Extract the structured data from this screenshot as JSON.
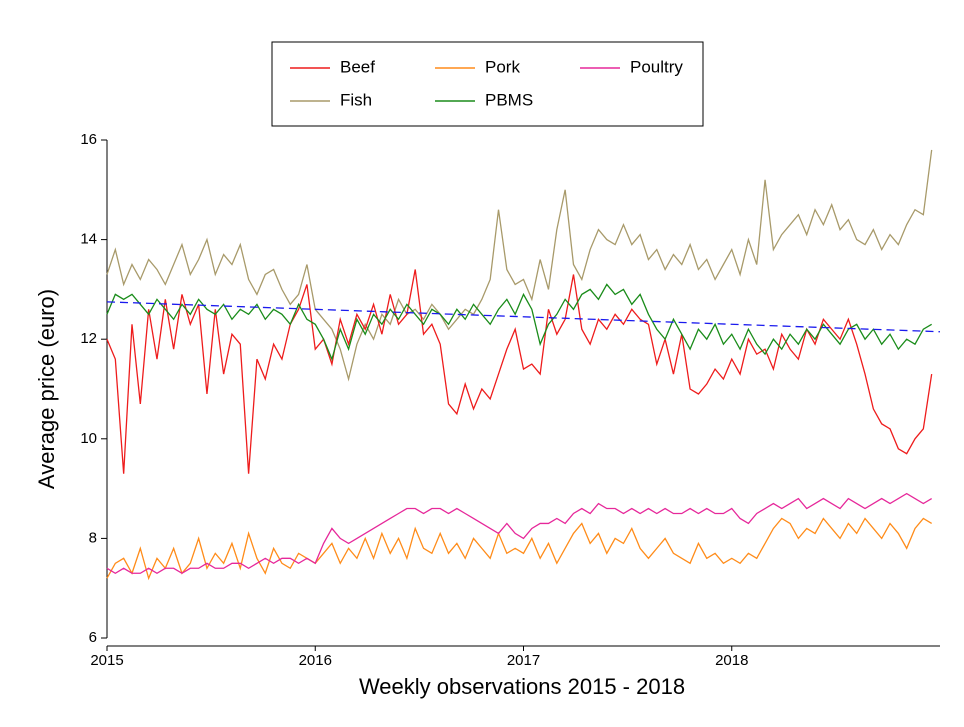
{
  "chart_data": {
    "type": "line",
    "xlabel": "Weekly observations 2015 - 2018",
    "ylabel": "Average price (euro)",
    "xlim": [
      2015,
      2019
    ],
    "xticks": [
      2015,
      2016,
      2017,
      2018
    ],
    "ylim": [
      6,
      16
    ],
    "yticks": [
      6,
      8,
      10,
      12,
      14,
      16
    ],
    "legend": "top",
    "x": [
      2015,
      2015.04,
      2015.08,
      2015.12,
      2015.16,
      2015.2,
      2015.24,
      2015.28,
      2015.32,
      2015.36,
      2015.4,
      2015.44,
      2015.48,
      2015.52,
      2015.56,
      2015.6,
      2015.64,
      2015.68,
      2015.72,
      2015.76,
      2015.8,
      2015.84,
      2015.88,
      2015.92,
      2015.96,
      2016,
      2016.04,
      2016.08,
      2016.12,
      2016.16,
      2016.2,
      2016.24,
      2016.28,
      2016.32,
      2016.36,
      2016.4,
      2016.44,
      2016.48,
      2016.52,
      2016.56,
      2016.6,
      2016.64,
      2016.68,
      2016.72,
      2016.76,
      2016.8,
      2016.84,
      2016.88,
      2016.92,
      2016.96,
      2017,
      2017.04,
      2017.08,
      2017.12,
      2017.16,
      2017.2,
      2017.24,
      2017.28,
      2017.32,
      2017.36,
      2017.4,
      2017.44,
      2017.48,
      2017.52,
      2017.56,
      2017.6,
      2017.64,
      2017.68,
      2017.72,
      2017.76,
      2017.8,
      2017.84,
      2017.88,
      2017.92,
      2017.96,
      2018,
      2018.04,
      2018.08,
      2018.12,
      2018.16,
      2018.2,
      2018.24,
      2018.28,
      2018.32,
      2018.36,
      2018.4,
      2018.44,
      2018.48,
      2018.52,
      2018.56,
      2018.6,
      2018.64,
      2018.68,
      2018.72,
      2018.76,
      2018.8,
      2018.84,
      2018.88,
      2018.92,
      2018.96
    ],
    "series": [
      {
        "name": "Beef",
        "color": "#ee1c1c",
        "values": [
          12.0,
          11.6,
          9.3,
          12.3,
          10.7,
          12.6,
          11.6,
          12.8,
          11.8,
          12.9,
          12.3,
          12.7,
          10.9,
          12.6,
          11.3,
          12.1,
          11.9,
          9.3,
          11.6,
          11.2,
          11.9,
          11.6,
          12.3,
          12.6,
          13.1,
          11.8,
          12.0,
          11.5,
          12.4,
          11.9,
          12.5,
          12.2,
          12.7,
          12.1,
          12.9,
          12.3,
          12.5,
          13.4,
          12.1,
          12.3,
          11.9,
          10.7,
          10.5,
          11.1,
          10.6,
          11.0,
          10.8,
          11.3,
          11.8,
          12.2,
          11.4,
          11.5,
          11.3,
          12.6,
          12.1,
          12.4,
          13.3,
          12.2,
          11.9,
          12.4,
          12.2,
          12.5,
          12.3,
          12.6,
          12.4,
          12.3,
          11.5,
          12.0,
          11.3,
          12.1,
          11.0,
          10.9,
          11.1,
          11.4,
          11.2,
          11.6,
          11.3,
          12.0,
          11.7,
          11.8,
          11.4,
          12.1,
          11.8,
          11.6,
          12.2,
          11.9,
          12.4,
          12.2,
          12.0,
          12.4,
          11.9,
          11.3,
          10.6,
          10.3,
          10.2,
          9.8,
          9.7,
          10.0,
          10.2,
          11.3
        ]
      },
      {
        "name": "Pork",
        "color": "#ff8c1a",
        "values": [
          7.2,
          7.5,
          7.6,
          7.3,
          7.8,
          7.2,
          7.6,
          7.4,
          7.8,
          7.3,
          7.5,
          8.0,
          7.4,
          7.7,
          7.5,
          7.9,
          7.4,
          8.1,
          7.6,
          7.3,
          7.8,
          7.5,
          7.4,
          7.7,
          7.6,
          7.5,
          7.7,
          7.9,
          7.5,
          7.8,
          7.6,
          8.0,
          7.6,
          8.1,
          7.7,
          8.0,
          7.6,
          8.2,
          7.8,
          7.7,
          8.1,
          7.7,
          7.9,
          7.6,
          8.0,
          7.8,
          7.6,
          8.1,
          7.7,
          7.8,
          7.7,
          8.0,
          7.6,
          7.9,
          7.5,
          7.8,
          8.1,
          8.3,
          7.9,
          8.1,
          7.7,
          8.0,
          7.9,
          8.2,
          7.8,
          7.6,
          7.8,
          8.0,
          7.7,
          7.6,
          7.5,
          7.9,
          7.6,
          7.7,
          7.5,
          7.6,
          7.5,
          7.7,
          7.6,
          7.9,
          8.2,
          8.4,
          8.3,
          8.0,
          8.2,
          8.1,
          8.4,
          8.2,
          8.0,
          8.3,
          8.1,
          8.4,
          8.2,
          8.0,
          8.3,
          8.1,
          7.8,
          8.2,
          8.4,
          8.3
        ]
      },
      {
        "name": "Poultry",
        "color": "#e6289a",
        "values": [
          7.4,
          7.3,
          7.4,
          7.3,
          7.3,
          7.4,
          7.3,
          7.4,
          7.4,
          7.3,
          7.4,
          7.4,
          7.5,
          7.4,
          7.4,
          7.5,
          7.5,
          7.4,
          7.5,
          7.6,
          7.5,
          7.6,
          7.6,
          7.5,
          7.6,
          7.5,
          7.9,
          8.2,
          8.0,
          7.9,
          8.0,
          8.1,
          8.2,
          8.3,
          8.4,
          8.5,
          8.6,
          8.6,
          8.5,
          8.6,
          8.6,
          8.5,
          8.6,
          8.5,
          8.4,
          8.3,
          8.2,
          8.1,
          8.3,
          8.1,
          8.0,
          8.2,
          8.3,
          8.3,
          8.4,
          8.3,
          8.5,
          8.6,
          8.5,
          8.7,
          8.6,
          8.6,
          8.5,
          8.6,
          8.5,
          8.6,
          8.5,
          8.6,
          8.5,
          8.5,
          8.6,
          8.5,
          8.6,
          8.5,
          8.5,
          8.6,
          8.4,
          8.3,
          8.5,
          8.6,
          8.7,
          8.6,
          8.7,
          8.8,
          8.6,
          8.7,
          8.8,
          8.7,
          8.6,
          8.8,
          8.7,
          8.6,
          8.7,
          8.8,
          8.7,
          8.8,
          8.9,
          8.8,
          8.7,
          8.8
        ]
      },
      {
        "name": "Fish",
        "color": "#a89a6a",
        "values": [
          13.3,
          13.8,
          13.1,
          13.5,
          13.2,
          13.6,
          13.4,
          13.1,
          13.5,
          13.9,
          13.3,
          13.6,
          14.0,
          13.3,
          13.7,
          13.5,
          13.9,
          13.2,
          12.9,
          13.3,
          13.4,
          13.0,
          12.7,
          12.9,
          13.5,
          12.6,
          12.4,
          12.2,
          11.8,
          11.2,
          11.9,
          12.3,
          12.0,
          12.5,
          12.3,
          12.8,
          12.5,
          12.6,
          12.4,
          12.7,
          12.5,
          12.2,
          12.4,
          12.6,
          12.5,
          12.8,
          13.2,
          14.6,
          13.4,
          13.1,
          13.2,
          12.8,
          13.6,
          13.0,
          14.2,
          15.0,
          13.5,
          13.2,
          13.8,
          14.2,
          14.0,
          13.9,
          14.3,
          13.9,
          14.1,
          13.6,
          13.8,
          13.4,
          13.7,
          13.5,
          13.9,
          13.4,
          13.6,
          13.2,
          13.5,
          13.8,
          13.3,
          14.0,
          13.5,
          15.2,
          13.8,
          14.1,
          14.3,
          14.5,
          14.1,
          14.6,
          14.3,
          14.7,
          14.2,
          14.4,
          14.0,
          13.9,
          14.2,
          13.8,
          14.1,
          13.9,
          14.3,
          14.6,
          14.5,
          15.8
        ]
      },
      {
        "name": "PBMS",
        "color": "#1a8c1a",
        "values": [
          12.5,
          12.9,
          12.8,
          12.9,
          12.7,
          12.5,
          12.8,
          12.6,
          12.4,
          12.7,
          12.5,
          12.8,
          12.6,
          12.5,
          12.7,
          12.4,
          12.6,
          12.5,
          12.7,
          12.4,
          12.6,
          12.5,
          12.3,
          12.7,
          12.4,
          12.3,
          12.0,
          11.6,
          12.2,
          11.8,
          12.4,
          12.1,
          12.5,
          12.3,
          12.6,
          12.4,
          12.7,
          12.5,
          12.3,
          12.6,
          12.5,
          12.3,
          12.6,
          12.4,
          12.7,
          12.5,
          12.3,
          12.6,
          12.8,
          12.5,
          12.9,
          12.6,
          11.9,
          12.3,
          12.5,
          12.8,
          12.6,
          12.9,
          13.0,
          12.8,
          13.1,
          12.9,
          13.0,
          12.7,
          12.9,
          12.5,
          12.2,
          12.0,
          12.4,
          12.1,
          11.8,
          12.2,
          12.0,
          12.3,
          11.9,
          12.1,
          11.8,
          12.2,
          11.9,
          11.7,
          12.0,
          11.8,
          12.1,
          11.9,
          12.2,
          12.0,
          12.3,
          12.1,
          11.9,
          12.2,
          12.3,
          12.0,
          12.2,
          11.9,
          12.1,
          11.8,
          12.0,
          11.9,
          12.2,
          12.3
        ]
      }
    ],
    "trend": {
      "color": "#1a1aee",
      "x": [
        2015,
        2019
      ],
      "values": [
        12.75,
        12.15
      ]
    }
  }
}
